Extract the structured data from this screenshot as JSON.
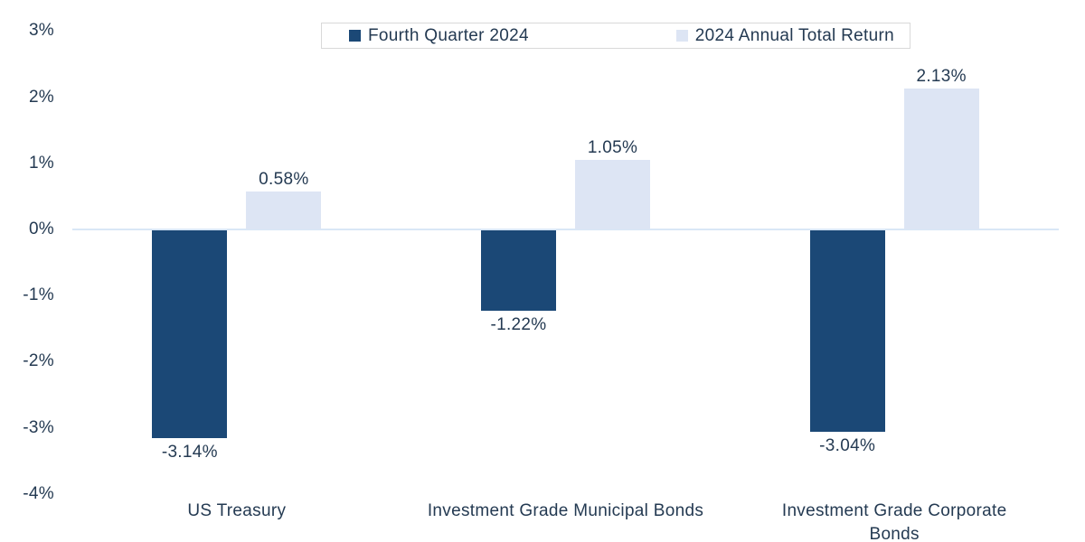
{
  "chart_data": {
    "type": "bar",
    "title": "",
    "categories": [
      "US Treasury",
      "Investment Grade Municipal Bonds",
      "Investment Grade Corporate Bonds"
    ],
    "series": [
      {
        "name": "Fourth Quarter 2024",
        "color": "#1B4876",
        "values": [
          -3.14,
          -1.22,
          -3.04
        ],
        "value_labels": [
          "-3.14%",
          "-1.22%",
          "-3.04%"
        ]
      },
      {
        "name": "2024 Annual Total Return",
        "color": "#DDE5F4",
        "values": [
          0.58,
          1.05,
          2.13
        ],
        "value_labels": [
          "0.58%",
          "1.05%",
          "2.13%"
        ]
      }
    ],
    "y_axis": {
      "tick_labels": [
        "3%",
        "2%",
        "1%",
        "0%",
        "-1%",
        "-2%",
        "-3%",
        "-4%"
      ],
      "tick_values": [
        3,
        2,
        1,
        0,
        -1,
        -2,
        -3,
        -4
      ],
      "ylim": [
        -4,
        3
      ],
      "unit": "%"
    },
    "xlabel": "",
    "ylabel": "",
    "grid": "zero-baseline-only",
    "legend_position": "top"
  },
  "colors": {
    "q4_bar": "#1B4876",
    "annual_bar": "#DDE5F4",
    "text": "#243A52",
    "zero_line": "#D9E7F6",
    "legend_border": "#D9D9D9",
    "background": "#FFFFFF"
  }
}
